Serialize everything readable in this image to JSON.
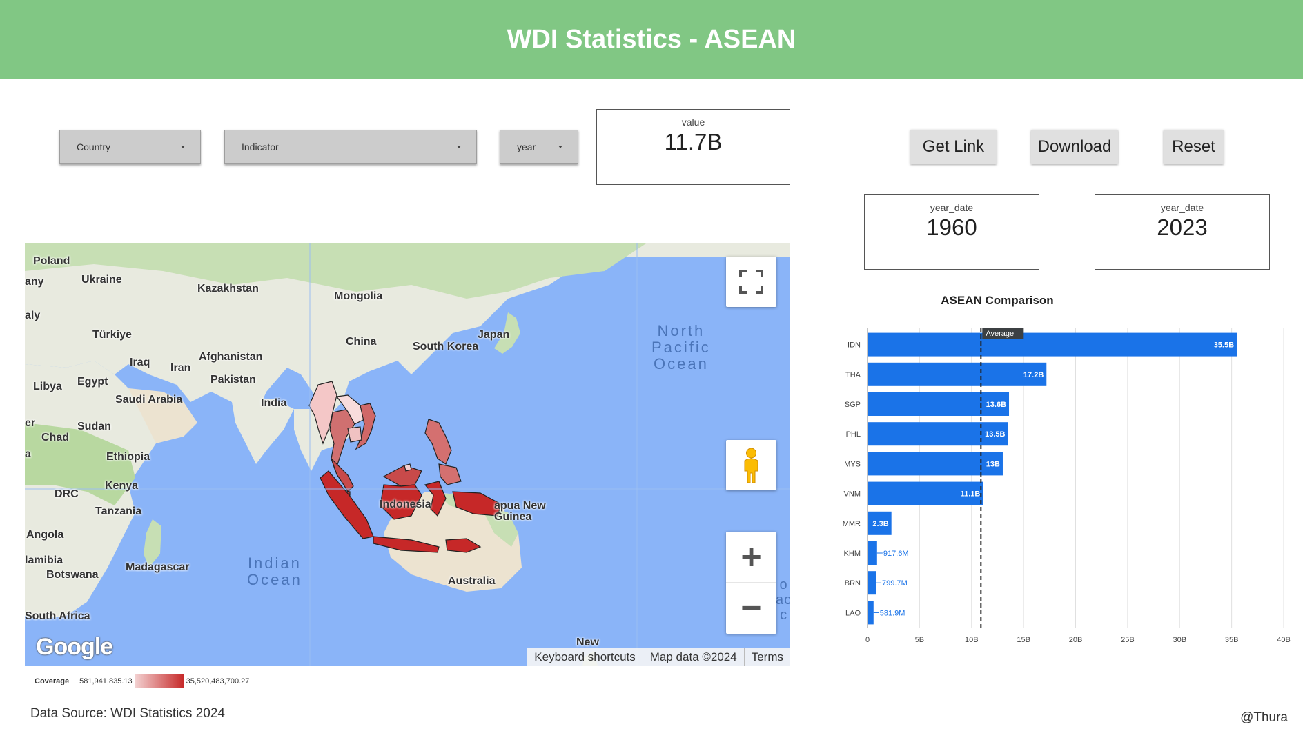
{
  "header": {
    "title": "WDI Statistics - ASEAN"
  },
  "filters": {
    "country_label": "Country",
    "indicator_label": "Indicator",
    "year_label": "year"
  },
  "scorecards": {
    "value": {
      "label": "value",
      "value": "11.7B"
    },
    "start_year": {
      "label": "year_date",
      "value": "1960"
    },
    "end_year": {
      "label": "year_date",
      "value": "2023"
    }
  },
  "buttons": {
    "get_link": "Get Link",
    "download": "Download",
    "reset": "Reset"
  },
  "map": {
    "labels": {
      "poland": "Poland",
      "ukraine": "Ukraine",
      "germany": "any",
      "italy": "aly",
      "kazakhstan": "Kazakhstan",
      "mongolia": "Mongolia",
      "turkiye": "Türkiye",
      "china": "China",
      "japan": "Japan",
      "south_korea": "South Korea",
      "iraq": "Iraq",
      "iran": "Iran",
      "afghanistan": "Afghanistan",
      "libya": "Libya",
      "egypt": "Egypt",
      "pakistan": "Pakistan",
      "saudi_arabia": "Saudi Arabia",
      "india": "India",
      "niger": "er",
      "sudan": "Sudan",
      "chad": "Chad",
      "ethiopia": "Ethiopia",
      "nigeria": "a",
      "kenya": "Kenya",
      "drc": "DRC",
      "tanzania": "Tanzania",
      "indonesia": "Indonesia",
      "png": "apua New\nGuinea",
      "angola": "Angola",
      "namibia": "lamibia",
      "madagascar": "Madagascar",
      "botswana": "Botswana",
      "australia": "Australia",
      "south_africa": "South Africa",
      "new_zealand": "New"
    },
    "oceans": {
      "north_pacific": "North\nPacific\nOcean",
      "indian": "Indian\nOcean",
      "south_pacific": "o\nac\nc"
    },
    "logo": "Google",
    "footer": {
      "shortcuts": "Keyboard shortcuts",
      "map_data": "Map data ©2024",
      "terms": "Terms"
    },
    "controls": {
      "zoom_in": "+",
      "zoom_out": "−"
    },
    "colors": {
      "land": "#e8eadf",
      "water": "#8ab4f8",
      "highlight_high": "#c62828",
      "highlight_low": "#f4c7c7"
    }
  },
  "legend": {
    "label": "Coverage",
    "min": "581,941,835.13",
    "max": "35,520,483,700.27"
  },
  "footer": {
    "source": "Data Source: WDI Statistics 2024",
    "credit": "@Thura"
  },
  "chart_data": {
    "type": "bar",
    "orientation": "horizontal",
    "title": "ASEAN Comparison",
    "categories": [
      "IDN",
      "THA",
      "SGP",
      "PHL",
      "MYS",
      "VNM",
      "MMR",
      "KHM",
      "BRN",
      "LAO"
    ],
    "values": [
      35.5,
      17.2,
      13.6,
      13.5,
      13.0,
      11.1,
      2.3,
      0.9176,
      0.7997,
      0.5819
    ],
    "data_labels": [
      "35.5B",
      "17.2B",
      "13.6B",
      "13.5B",
      "13B",
      "11.1B",
      "2.3B",
      "917.6M",
      "799.7M",
      "581.9M"
    ],
    "xlim": [
      0,
      40
    ],
    "x_ticks": [
      "0",
      "5B",
      "10B",
      "15B",
      "20B",
      "25B",
      "30B",
      "35B",
      "40B"
    ],
    "average": {
      "label": "Average",
      "value": 10.9
    },
    "bar_color": "#1a73e8",
    "grid": true
  }
}
